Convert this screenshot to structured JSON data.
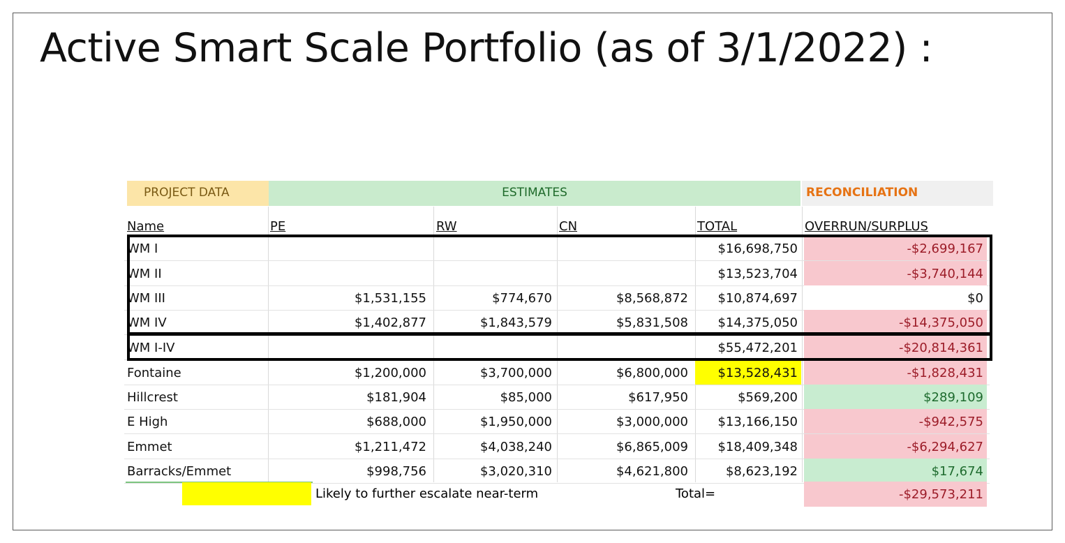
{
  "title": "Active Smart Scale Portfolio (as of 3/1/2022) :",
  "header_groups": {
    "project": "PROJECT DATA",
    "estimates": "ESTIMATES",
    "reconciliation": "RECONCILIATION"
  },
  "columns": {
    "name": "Name",
    "pe": "PE",
    "rw": "RW",
    "cn": "CN",
    "total": "TOTAL",
    "overrun": "OVERRUN/SURPLUS"
  },
  "rows": [
    {
      "name": "WM I",
      "pe": "",
      "rw": "",
      "cn": "",
      "total": "$16,698,750",
      "overrun": "-$2,699,167",
      "status": "neg"
    },
    {
      "name": "WM II",
      "pe": "",
      "rw": "",
      "cn": "",
      "total": "$13,523,704",
      "overrun": "-$3,740,144",
      "status": "neg"
    },
    {
      "name": "WM III",
      "pe": "$1,531,155",
      "rw": "$774,670",
      "cn": "$8,568,872",
      "total": "$10,874,697",
      "overrun": "$0",
      "status": "zero"
    },
    {
      "name": "WM IV",
      "pe": "$1,402,877",
      "rw": "$1,843,579",
      "cn": "$5,831,508",
      "total": "$14,375,050",
      "overrun": "-$14,375,050",
      "status": "neg"
    },
    {
      "name": "WM I-IV",
      "pe": "",
      "rw": "",
      "cn": "",
      "total": "$55,472,201",
      "overrun": "-$20,814,361",
      "status": "neg"
    },
    {
      "name": "Fontaine",
      "pe": "$1,200,000",
      "rw": "$3,700,000",
      "cn": "$6,800,000",
      "total": "$13,528,431",
      "overrun": "-$1,828,431",
      "status": "neg",
      "total_highlight": "#ffff00"
    },
    {
      "name": "Hillcrest",
      "pe": "$181,904",
      "rw": "$85,000",
      "cn": "$617,950",
      "total": "$569,200",
      "overrun": "$289,109",
      "status": "pos"
    },
    {
      "name": "E High",
      "pe": "$688,000",
      "rw": "$1,950,000",
      "cn": "$3,000,000",
      "total": "$13,166,150",
      "overrun": "-$942,575",
      "status": "neg"
    },
    {
      "name": "Emmet",
      "pe": "$1,211,472",
      "rw": "$4,038,240",
      "cn": "$6,865,009",
      "total": "$18,409,348",
      "overrun": "-$6,294,627",
      "status": "neg"
    },
    {
      "name": "Barracks/Emmet",
      "pe": "$998,756",
      "rw": "$3,020,310",
      "cn": "$4,621,800",
      "total": "$8,623,192",
      "overrun": "$17,674",
      "status": "pos"
    }
  ],
  "legend": {
    "swatch_color": "#ffff00",
    "text": "Likely to further escalate near-term"
  },
  "grand_total": {
    "label": "Total=",
    "value": "-$29,573,211"
  },
  "colors": {
    "negative_fill": "#f8c8ce",
    "negative_text": "#9c1c28",
    "positive_fill": "#c8ecd0",
    "positive_text": "#1e6b2e",
    "project_header": "#fce5a8",
    "estimates_header": "#c9ebcd",
    "reconciliation_header_text": "#e67314"
  }
}
